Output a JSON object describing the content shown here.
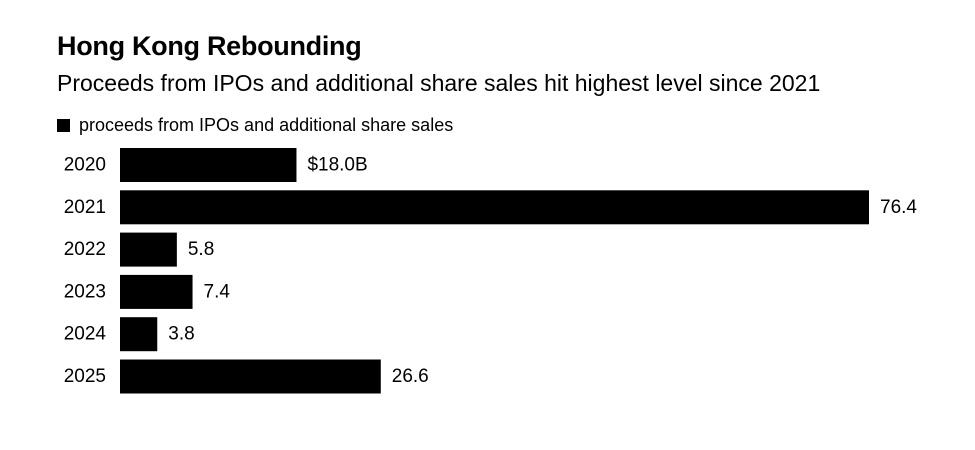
{
  "chart_data": {
    "type": "bar",
    "orientation": "horizontal",
    "title": "Hong Kong Rebounding",
    "subtitle": "Proceeds from IPOs and additional share sales hit highest level since 2021",
    "legend": [
      {
        "label": "proceeds from IPOs and additional share sales",
        "color": "#000000"
      }
    ],
    "legend_position": "top-left",
    "categories": [
      "2020",
      "2021",
      "2022",
      "2023",
      "2024",
      "2025"
    ],
    "values": [
      18.0,
      76.4,
      5.8,
      7.4,
      3.8,
      26.6
    ],
    "value_labels": [
      "$18.0B",
      "76.4",
      "5.8",
      "7.4",
      "3.8",
      "26.6"
    ],
    "unit": "billion USD",
    "xlim": [
      0,
      76.4
    ],
    "grid": false,
    "bar_color": "#000000"
  }
}
